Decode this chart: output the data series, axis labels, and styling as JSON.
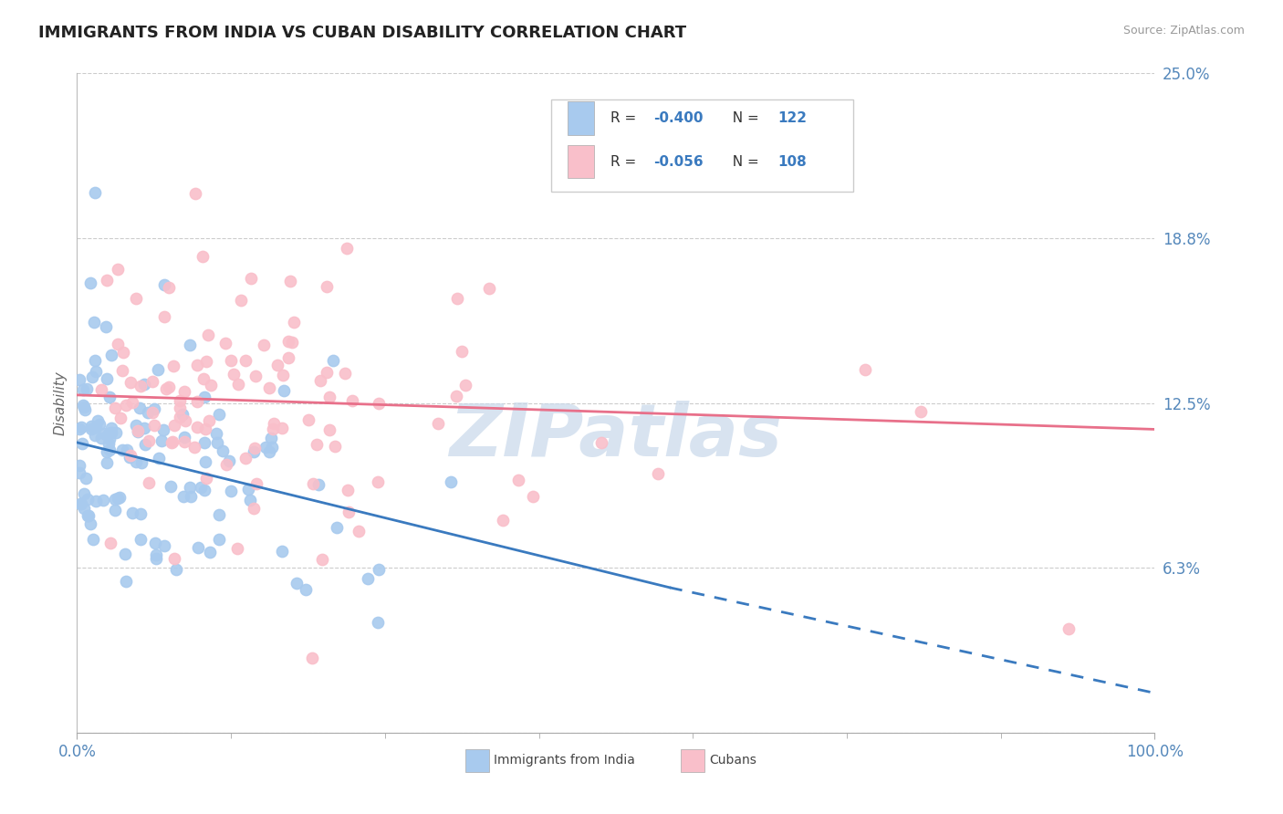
{
  "title": "IMMIGRANTS FROM INDIA VS CUBAN DISABILITY CORRELATION CHART",
  "source": "Source: ZipAtlas.com",
  "ylabel": "Disability",
  "xlim": [
    0.0,
    100.0
  ],
  "ylim": [
    0.0,
    25.0
  ],
  "yticks": [
    0.0,
    6.25,
    12.5,
    18.75,
    25.0
  ],
  "ytick_labels": [
    "",
    "6.3%",
    "12.5%",
    "18.8%",
    "25.0%"
  ],
  "xticks": [
    0.0,
    100.0
  ],
  "xtick_labels": [
    "0.0%",
    "100.0%"
  ],
  "blue_scatter_color": "#A8CAEE",
  "pink_scatter_color": "#F9BFCA",
  "blue_line_color": "#3A7ABF",
  "pink_line_color": "#E8708A",
  "grid_color": "#CCCCCC",
  "bg_color": "#FFFFFF",
  "legend_R_blue_val": "-0.400",
  "legend_N_blue_val": "122",
  "legend_R_pink_val": "-0.056",
  "legend_N_pink_val": "108",
  "label_blue": "Immigrants from India",
  "label_pink": "Cubans",
  "title_color": "#222222",
  "axis_val_color": "#5588BB",
  "watermark_text": "ZIPatlas",
  "watermark_color": "#C8D8EA",
  "num_color": "#3A7ABF",
  "blue_R": -0.4,
  "blue_N": 122,
  "pink_R": -0.056,
  "pink_N": 108,
  "seed_blue": 42,
  "seed_pink": 123,
  "blue_line_x0": 0.0,
  "blue_line_y0": 11.0,
  "blue_line_x1": 55.0,
  "blue_line_y1": 5.5,
  "blue_dash_x0": 55.0,
  "blue_dash_y0": 5.5,
  "blue_dash_x1": 100.0,
  "blue_dash_y1": 1.5,
  "pink_line_x0": 0.0,
  "pink_line_y0": 12.8,
  "pink_line_x1": 100.0,
  "pink_line_y1": 11.5
}
